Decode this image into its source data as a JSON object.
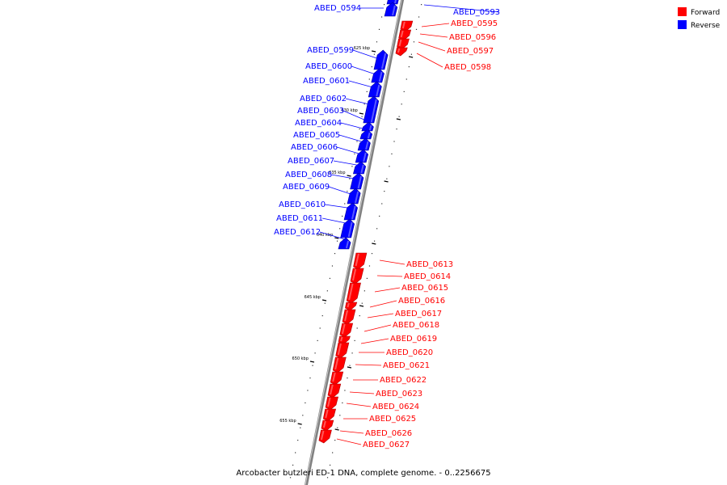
{
  "legend": {
    "forward_label": "Forward",
    "reverse_label": "Reverse",
    "forward_color": "#ff0000",
    "reverse_color": "#0000ff"
  },
  "caption": "Arcobacter butzleri ED-1 DNA, complete genome. - 0..2256675",
  "ticks": [
    "625 kbp",
    "630 kbp",
    "635 kbp",
    "640 kbp",
    "645 kbp",
    "650 kbp",
    "655 kbp"
  ],
  "genes": [
    {
      "name": "ABED_0593",
      "strand": "reverse"
    },
    {
      "name": "ABED_0594",
      "strand": "reverse"
    },
    {
      "name": "ABED_0595",
      "strand": "forward"
    },
    {
      "name": "ABED_0596",
      "strand": "forward"
    },
    {
      "name": "ABED_0597",
      "strand": "forward"
    },
    {
      "name": "ABED_0598",
      "strand": "forward"
    },
    {
      "name": "ABED_0599",
      "strand": "reverse"
    },
    {
      "name": "ABED_0600",
      "strand": "reverse"
    },
    {
      "name": "ABED_0601",
      "strand": "reverse"
    },
    {
      "name": "ABED_0602",
      "strand": "reverse"
    },
    {
      "name": "ABED_0603",
      "strand": "reverse"
    },
    {
      "name": "ABED_0604",
      "strand": "reverse"
    },
    {
      "name": "ABED_0605",
      "strand": "reverse"
    },
    {
      "name": "ABED_0606",
      "strand": "reverse"
    },
    {
      "name": "ABED_0607",
      "strand": "reverse"
    },
    {
      "name": "ABED_0608",
      "strand": "reverse"
    },
    {
      "name": "ABED_0609",
      "strand": "reverse"
    },
    {
      "name": "ABED_0610",
      "strand": "reverse"
    },
    {
      "name": "ABED_0611",
      "strand": "reverse"
    },
    {
      "name": "ABED_0612",
      "strand": "reverse"
    },
    {
      "name": "ABED_0613",
      "strand": "forward"
    },
    {
      "name": "ABED_0614",
      "strand": "forward"
    },
    {
      "name": "ABED_0615",
      "strand": "forward"
    },
    {
      "name": "ABED_0616",
      "strand": "forward"
    },
    {
      "name": "ABED_0617",
      "strand": "forward"
    },
    {
      "name": "ABED_0618",
      "strand": "forward"
    },
    {
      "name": "ABED_0619",
      "strand": "forward"
    },
    {
      "name": "ABED_0620",
      "strand": "forward"
    },
    {
      "name": "ABED_0621",
      "strand": "forward"
    },
    {
      "name": "ABED_0622",
      "strand": "forward"
    },
    {
      "name": "ABED_0623",
      "strand": "forward"
    },
    {
      "name": "ABED_0624",
      "strand": "forward"
    },
    {
      "name": "ABED_0625",
      "strand": "forward"
    },
    {
      "name": "ABED_0626",
      "strand": "forward"
    },
    {
      "name": "ABED_0627",
      "strand": "forward"
    }
  ]
}
